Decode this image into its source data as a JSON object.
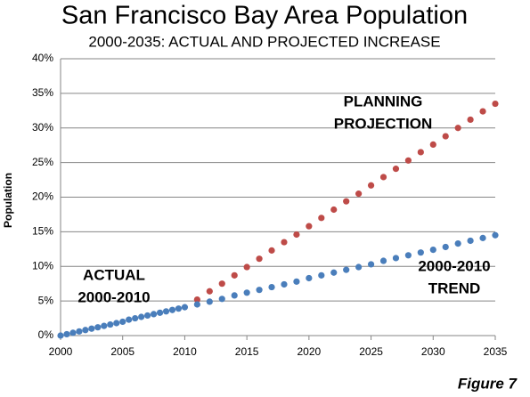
{
  "chart_data": {
    "type": "scatter",
    "title": "San Francisco Bay Area Population",
    "subtitle": "2000-2035: ACTUAL AND PROJECTED INCREASE",
    "y_label": "Population",
    "figure_label": "Figure 7",
    "xlim": [
      2000,
      2035
    ],
    "xticks": [
      2000,
      2005,
      2010,
      2015,
      2020,
      2025,
      2030,
      2035
    ],
    "ylim": [
      0,
      40
    ],
    "yticks": [
      {
        "value": 0,
        "label": "0%"
      },
      {
        "value": 5,
        "label": "5%"
      },
      {
        "value": 10,
        "label": "10%"
      },
      {
        "value": 15,
        "label": "15%"
      },
      {
        "value": 20,
        "label": "20%"
      },
      {
        "value": 25,
        "label": "25%"
      },
      {
        "value": 30,
        "label": "30%"
      },
      {
        "value": 35,
        "label": "35%"
      },
      {
        "value": 40,
        "label": "40%"
      }
    ],
    "grid": true,
    "series": [
      {
        "color": "#4a7ebb",
        "x": [
          2000,
          2000.5,
          2001,
          2001.5,
          2002,
          2002.5,
          2003,
          2003.5,
          2004,
          2004.5,
          2005,
          2005.5,
          2006,
          2006.5,
          2007,
          2007.5,
          2008,
          2008.5,
          2009,
          2009.5,
          2010
        ],
        "values": [
          0,
          0.2,
          0.4,
          0.6,
          0.8,
          1.0,
          1.2,
          1.4,
          1.6,
          1.8,
          2.0,
          2.3,
          2.5,
          2.7,
          2.9,
          3.1,
          3.3,
          3.5,
          3.7,
          3.9,
          4.1
        ]
      },
      {
        "color": "#be4b48",
        "x": [
          2011,
          2012,
          2013,
          2014,
          2015,
          2016,
          2017,
          2018,
          2019,
          2020,
          2021,
          2022,
          2023,
          2024,
          2025,
          2026,
          2027,
          2028,
          2029,
          2030,
          2031,
          2032,
          2033,
          2034,
          2035
        ],
        "values": [
          5.2,
          6.4,
          7.5,
          8.7,
          9.9,
          11.1,
          12.3,
          13.5,
          14.6,
          15.8,
          17.0,
          18.2,
          19.4,
          20.5,
          21.7,
          22.9,
          24.1,
          25.3,
          26.5,
          27.6,
          28.8,
          30.0,
          31.2,
          32.4,
          33.5
        ]
      },
      {
        "color": "#4a7ebb",
        "x": [
          2011,
          2012,
          2013,
          2014,
          2015,
          2016,
          2017,
          2018,
          2019,
          2020,
          2021,
          2022,
          2023,
          2024,
          2025,
          2026,
          2027,
          2028,
          2029,
          2030,
          2031,
          2032,
          2033,
          2034,
          2035
        ],
        "values": [
          4.5,
          4.9,
          5.3,
          5.8,
          6.2,
          6.6,
          7.0,
          7.4,
          7.8,
          8.3,
          8.7,
          9.1,
          9.5,
          9.9,
          10.3,
          10.8,
          11.2,
          11.6,
          12.0,
          12.4,
          12.8,
          13.3,
          13.7,
          14.1,
          14.5
        ]
      }
    ],
    "annotations": [
      {
        "lines": [
          "PLANNING",
          "PROJECTION"
        ]
      },
      {
        "lines": [
          "ACTUAL",
          "2000-2010"
        ]
      },
      {
        "lines": [
          "2000-2010",
          "TREND"
        ]
      }
    ]
  }
}
